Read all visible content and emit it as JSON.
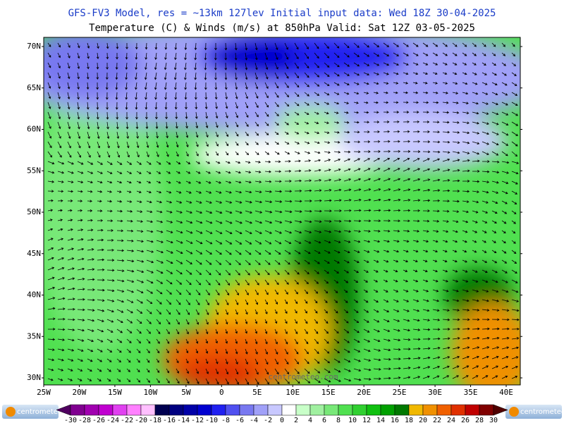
{
  "header": {
    "title": "GFS-FV3 Model, res = ~13km 127lev   Initial input data: Wed 18Z 30-04-2025",
    "subtitle": "Temperature (C) & Winds (m/s) at 850hPa  Valid: Sat 12Z 03-05-2025"
  },
  "map": {
    "lat_labels": [
      "70N",
      "65N",
      "60N",
      "55N",
      "50N",
      "45N",
      "40N",
      "35N",
      "30N"
    ],
    "lon_labels": [
      "25W",
      "20W",
      "15W",
      "10W",
      "5W",
      "0",
      "5E",
      "10E",
      "15E",
      "20E",
      "25E",
      "30E",
      "35E",
      "40E"
    ],
    "watermark": "centrometeo.com"
  },
  "colorbar": {
    "ticks": [
      -30,
      -28,
      -26,
      -24,
      -22,
      -20,
      -18,
      -16,
      -14,
      -12,
      -10,
      -8,
      -6,
      -4,
      -2,
      0,
      2,
      4,
      6,
      8,
      10,
      12,
      14,
      16,
      18,
      20,
      22,
      24,
      26,
      28,
      30
    ],
    "colors": [
      "#500060",
      "#800090",
      "#a000b0",
      "#c000d0",
      "#e040f0",
      "#ff80ff",
      "#ffc0ff",
      "#000050",
      "#000080",
      "#0000a8",
      "#0000d0",
      "#2020f0",
      "#5050f0",
      "#7878f0",
      "#a0a0f8",
      "#c8c8ff",
      "#ffffff",
      "#c8ffc8",
      "#a0f0a0",
      "#78e878",
      "#50e050",
      "#30d030",
      "#10c010",
      "#00a000",
      "#007800",
      "#f0b800",
      "#f09000",
      "#f06000",
      "#e03000",
      "#c00000",
      "#800000",
      "#500000"
    ]
  },
  "logos": [
    "centrometeo",
    "centrometeo"
  ]
}
